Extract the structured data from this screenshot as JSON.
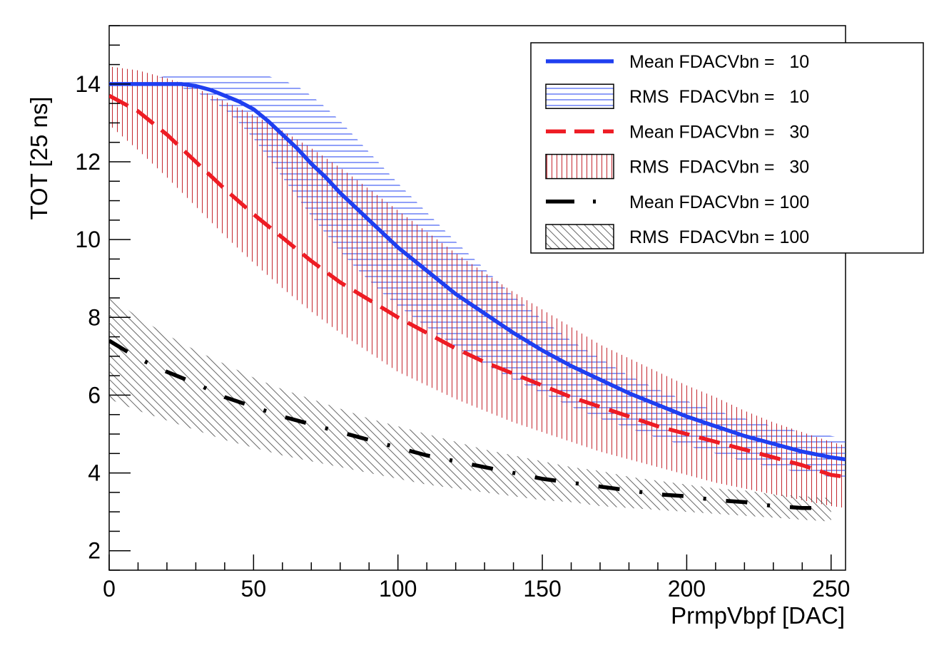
{
  "chart_data": {
    "type": "line",
    "title": "",
    "xlabel": "PrmpVbpf [DAC]",
    "ylabel": "TOT [25 ns]",
    "xlim": [
      0,
      255
    ],
    "ylim": [
      1.5,
      15.5
    ],
    "x_ticks": [
      0,
      50,
      100,
      150,
      200,
      250
    ],
    "x_tick_labels": [
      "0",
      "50",
      "100",
      "150",
      "200",
      "250"
    ],
    "y_ticks": [
      2,
      4,
      6,
      8,
      10,
      12,
      14
    ],
    "y_tick_labels": [
      "2",
      "4",
      "6",
      "8",
      "10",
      "12",
      "14"
    ],
    "grid": false,
    "legend_position": "top-right",
    "legend": [
      {
        "label": "Mean FDACVbn =   10",
        "kind": "line",
        "color": "#1f3ff0",
        "dash": "solid"
      },
      {
        "label": "RMS  FDACVbn =   10",
        "kind": "band",
        "color": "#1f3ff0",
        "hatch": "horizontal"
      },
      {
        "label": "Mean FDACVbn =   30",
        "kind": "line",
        "color": "#ee1c24",
        "dash": "dashed"
      },
      {
        "label": "RMS  FDACVbn =   30",
        "kind": "band",
        "color": "#c4262e",
        "hatch": "vertical"
      },
      {
        "label": "Mean FDACVbn = 100",
        "kind": "line",
        "color": "#000000",
        "dash": "dash-dot"
      },
      {
        "label": "RMS  FDACVbn = 100",
        "kind": "band",
        "color": "#555555",
        "hatch": "diagonal"
      }
    ],
    "series": [
      {
        "color": "#1f3ff0",
        "dash": "solid",
        "hatch": "horizontal",
        "x": [
          0,
          10,
          20,
          25,
          30,
          35,
          40,
          45,
          50,
          55,
          60,
          65,
          70,
          75,
          80,
          85,
          90,
          95,
          100,
          110,
          120,
          130,
          140,
          150,
          160,
          170,
          180,
          190,
          200,
          210,
          220,
          230,
          240,
          250,
          255
        ],
        "mean": [
          14.0,
          14.0,
          14.0,
          14.0,
          13.95,
          13.85,
          13.7,
          13.55,
          13.35,
          13.05,
          12.7,
          12.35,
          11.95,
          11.6,
          11.2,
          10.85,
          10.5,
          10.15,
          9.8,
          9.2,
          8.6,
          8.1,
          7.6,
          7.15,
          6.75,
          6.4,
          6.05,
          5.75,
          5.45,
          5.2,
          4.95,
          4.75,
          4.55,
          4.4,
          4.35
        ],
        "upper": [
          14.0,
          14.1,
          14.2,
          14.25,
          14.25,
          14.25,
          14.25,
          14.25,
          14.25,
          14.2,
          14.1,
          13.95,
          13.7,
          13.4,
          13.05,
          12.65,
          12.25,
          11.85,
          11.45,
          10.7,
          9.95,
          9.25,
          8.55,
          7.95,
          7.4,
          6.95,
          6.5,
          6.15,
          5.85,
          5.6,
          5.4,
          5.2,
          5.05,
          4.95,
          4.9
        ],
        "lower": [
          14.0,
          14.0,
          13.95,
          13.9,
          13.8,
          13.6,
          13.35,
          13.0,
          12.6,
          12.1,
          11.6,
          11.1,
          10.6,
          10.15,
          9.7,
          9.3,
          8.95,
          8.6,
          8.3,
          7.75,
          7.25,
          6.8,
          6.4,
          6.05,
          5.7,
          5.4,
          5.15,
          4.9,
          4.7,
          4.5,
          4.3,
          4.15,
          4.0,
          3.9,
          3.85
        ]
      },
      {
        "color": "#ee1c24",
        "dash": "dashed",
        "hatch": "vertical",
        "x": [
          0,
          10,
          20,
          30,
          40,
          50,
          60,
          70,
          80,
          90,
          100,
          110,
          120,
          130,
          140,
          150,
          160,
          170,
          180,
          190,
          200,
          210,
          220,
          230,
          240,
          250,
          255
        ],
        "mean": [
          13.7,
          13.3,
          12.7,
          12.0,
          11.3,
          10.65,
          10.05,
          9.45,
          8.9,
          8.45,
          8.0,
          7.6,
          7.2,
          6.85,
          6.55,
          6.25,
          5.95,
          5.7,
          5.45,
          5.2,
          5.0,
          4.8,
          4.6,
          4.4,
          4.2,
          3.95,
          3.9
        ],
        "upper": [
          14.45,
          14.35,
          14.15,
          13.9,
          13.55,
          13.2,
          12.8,
          12.35,
          11.85,
          11.3,
          10.75,
          10.2,
          9.65,
          9.15,
          8.65,
          8.2,
          7.75,
          7.3,
          6.95,
          6.6,
          6.25,
          5.95,
          5.6,
          5.3,
          5.05,
          4.8,
          4.7
        ],
        "lower": [
          12.95,
          12.3,
          11.6,
          10.85,
          10.1,
          9.4,
          8.75,
          8.15,
          7.6,
          7.1,
          6.6,
          6.25,
          5.9,
          5.6,
          5.3,
          5.05,
          4.8,
          4.55,
          4.35,
          4.15,
          3.95,
          3.75,
          3.6,
          3.45,
          3.3,
          3.15,
          3.1
        ]
      },
      {
        "color": "#000000",
        "dash": "dash-dot",
        "hatch": "diagonal",
        "x": [
          0,
          10,
          20,
          30,
          40,
          50,
          60,
          70,
          80,
          90,
          100,
          110,
          120,
          130,
          140,
          150,
          160,
          170,
          180,
          190,
          200,
          210,
          220,
          230,
          240,
          250
        ],
        "mean": [
          7.4,
          6.95,
          6.6,
          6.3,
          5.95,
          5.7,
          5.45,
          5.25,
          5.05,
          4.85,
          4.65,
          4.45,
          4.3,
          4.15,
          4.0,
          3.85,
          3.75,
          3.65,
          3.55,
          3.45,
          3.4,
          3.3,
          3.25,
          3.15,
          3.1,
          3.1
        ],
        "upper": [
          8.55,
          8.0,
          7.55,
          7.15,
          6.8,
          6.45,
          6.15,
          5.9,
          5.65,
          5.4,
          5.2,
          5.0,
          4.8,
          4.6,
          4.45,
          4.3,
          4.15,
          4.05,
          3.9,
          3.8,
          3.7,
          3.6,
          3.55,
          3.45,
          3.4,
          3.35
        ],
        "lower": [
          5.9,
          5.6,
          5.35,
          5.1,
          4.85,
          4.65,
          4.45,
          4.3,
          4.15,
          4.0,
          3.85,
          3.7,
          3.6,
          3.5,
          3.4,
          3.3,
          3.25,
          3.15,
          3.1,
          3.05,
          3.0,
          2.95,
          2.9,
          2.85,
          2.8,
          2.75
        ]
      }
    ]
  }
}
